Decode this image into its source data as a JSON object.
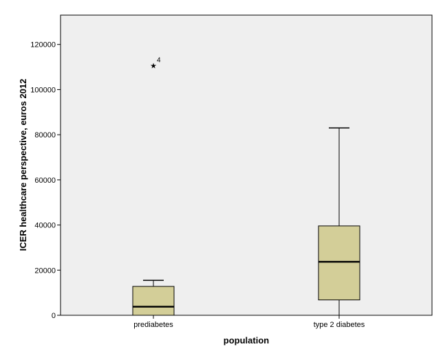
{
  "chart_data": {
    "type": "boxplot",
    "xlabel": "population",
    "ylabel": "ICER healthcare perspective, euros 2012",
    "ylim": [
      0,
      133000
    ],
    "yticks": [
      0,
      20000,
      40000,
      60000,
      80000,
      100000,
      120000
    ],
    "plot_background": "#efefef",
    "box_color": "#d3ce98",
    "grid": false,
    "legend": "none",
    "categories": [
      "prediabetes",
      "type 2 diabetes"
    ],
    "boxes": [
      {
        "category": "prediabetes",
        "whisker_low": 0,
        "q1": 0,
        "median": 3800,
        "q3": 12800,
        "whisker_high": 15500,
        "outliers": [
          {
            "value": 111000,
            "label": "4",
            "marker": "star"
          }
        ]
      },
      {
        "category": "type 2 diabetes",
        "whisker_low": 0,
        "q1": 6800,
        "median": 23700,
        "q3": 39600,
        "whisker_high": 83000,
        "outliers": []
      }
    ]
  }
}
